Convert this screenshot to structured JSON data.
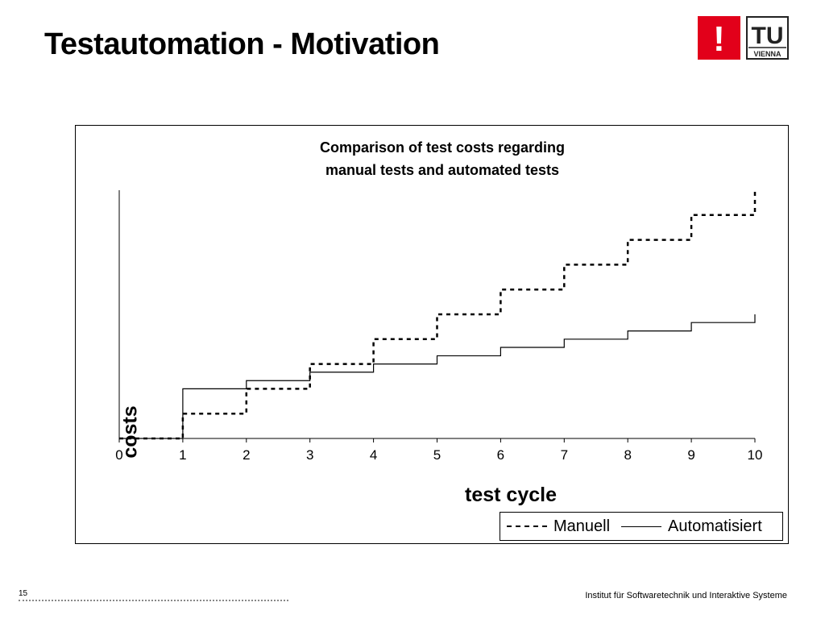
{
  "slide": {
    "title": "Testautomation - Motivation",
    "page_number": "15",
    "institute": "Institut für Softwaretechnik und Interaktive Systeme"
  },
  "logo": {
    "badge_glyph": "!",
    "text_big": "TU",
    "text_small": "VIENNA",
    "colors": {
      "red": "#e2001a",
      "dark": "#222222"
    }
  },
  "chart_data": {
    "type": "line",
    "step": true,
    "title_line1": "Comparison of test costs regarding",
    "title_line2": "manual tests and automated tests",
    "xlabel": "test cycle",
    "ylabel": "costs",
    "x_ticks": [
      "0",
      "1",
      "2",
      "3",
      "4",
      "5",
      "6",
      "7",
      "8",
      "9",
      "10"
    ],
    "xlim": [
      0,
      10
    ],
    "ylim": [
      0,
      10
    ],
    "grid": false,
    "legend_position": "bottom-right",
    "series": [
      {
        "name": "Manuell",
        "style": "dashed",
        "x": [
          0,
          1,
          2,
          3,
          4,
          5,
          6,
          7,
          8,
          9,
          10
        ],
        "values": [
          0,
          1,
          2,
          3,
          4,
          5,
          6,
          7,
          8,
          9,
          10
        ]
      },
      {
        "name": "Automatisiert",
        "style": "solid",
        "x": [
          0,
          1,
          2,
          3,
          4,
          5,
          6,
          7,
          8,
          9,
          10
        ],
        "values": [
          0,
          2,
          2.33,
          2.67,
          3,
          3.33,
          3.67,
          4,
          4.33,
          4.67,
          5
        ]
      }
    ]
  }
}
